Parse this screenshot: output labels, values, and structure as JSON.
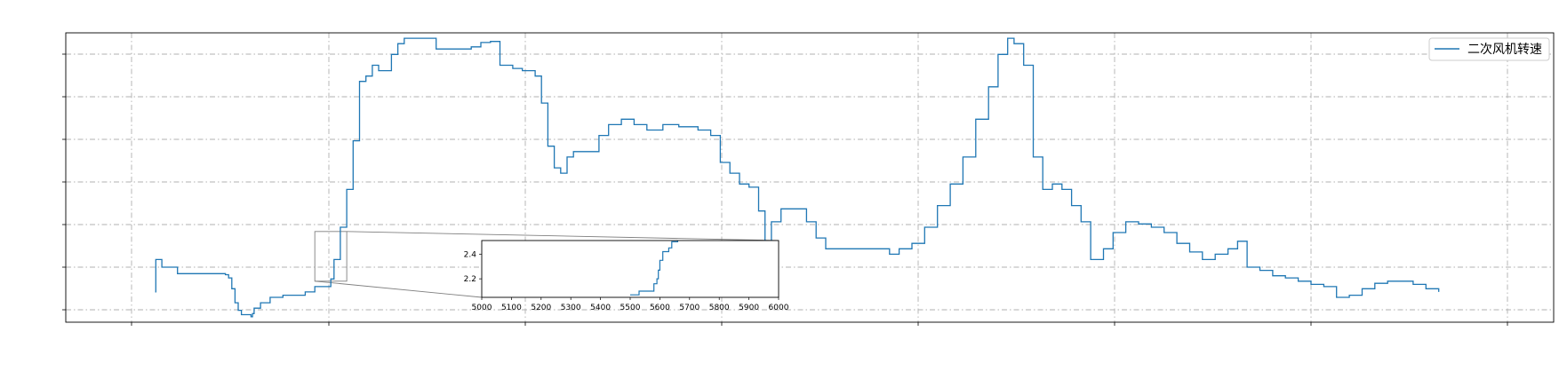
{
  "chart_data": {
    "type": "line",
    "title": "",
    "xlabel": "",
    "ylabel": "",
    "legend": {
      "placement": "top-right"
    },
    "grid": true,
    "color": "#1f77b4",
    "series": [
      {
        "name": "二次风机转速",
        "y_units": "y-axis units (no tick labels shown)",
        "points": [
          [
            0,
            1.95
          ],
          [
            20,
            2.25
          ],
          [
            200,
            2.25
          ],
          [
            210,
            2.18
          ],
          [
            700,
            2.12
          ],
          [
            1200,
            2.12
          ],
          [
            1900,
            2.12
          ],
          [
            2200,
            2.11
          ],
          [
            2300,
            2.08
          ],
          [
            2400,
            1.98
          ],
          [
            2500,
            1.85
          ],
          [
            2600,
            1.78
          ],
          [
            2700,
            1.74
          ],
          [
            3000,
            1.72
          ],
          [
            3050,
            1.75
          ],
          [
            3100,
            1.8
          ],
          [
            3300,
            1.85
          ],
          [
            3600,
            1.9
          ],
          [
            4000,
            1.92
          ],
          [
            4700,
            1.95
          ],
          [
            5000,
            2.0
          ],
          [
            5500,
            2.07
          ],
          [
            5600,
            2.25
          ],
          [
            5800,
            2.55
          ],
          [
            6000,
            2.9
          ],
          [
            6200,
            3.35
          ],
          [
            6400,
            3.9
          ],
          [
            6600,
            3.95
          ],
          [
            6800,
            4.05
          ],
          [
            7000,
            4.0
          ],
          [
            7400,
            4.15
          ],
          [
            7600,
            4.25
          ],
          [
            7800,
            4.3
          ],
          [
            8200,
            4.3
          ],
          [
            8800,
            4.2
          ],
          [
            9500,
            4.2
          ],
          [
            9900,
            4.22
          ],
          [
            10200,
            4.26
          ],
          [
            10500,
            4.27
          ],
          [
            10800,
            4.05
          ],
          [
            11000,
            4.05
          ],
          [
            11200,
            4.02
          ],
          [
            11500,
            4.0
          ],
          [
            11900,
            3.95
          ],
          [
            12100,
            3.7
          ],
          [
            12300,
            3.3
          ],
          [
            12500,
            3.1
          ],
          [
            12700,
            3.05
          ],
          [
            12900,
            3.2
          ],
          [
            13100,
            3.25
          ],
          [
            13400,
            3.25
          ],
          [
            13600,
            3.25
          ],
          [
            13900,
            3.4
          ],
          [
            14200,
            3.5
          ],
          [
            14600,
            3.55
          ],
          [
            15000,
            3.5
          ],
          [
            15400,
            3.45
          ],
          [
            15900,
            3.5
          ],
          [
            16400,
            3.48
          ],
          [
            17000,
            3.45
          ],
          [
            17400,
            3.4
          ],
          [
            17700,
            3.15
          ],
          [
            18000,
            3.05
          ],
          [
            18300,
            2.95
          ],
          [
            18600,
            2.92
          ],
          [
            18900,
            2.7
          ],
          [
            19100,
            2.4
          ],
          [
            19300,
            2.6
          ],
          [
            19600,
            2.72
          ],
          [
            20000,
            2.72
          ],
          [
            20400,
            2.6
          ],
          [
            20700,
            2.45
          ],
          [
            21000,
            2.35
          ],
          [
            21500,
            2.35
          ],
          [
            22000,
            2.35
          ],
          [
            22500,
            2.35
          ],
          [
            23000,
            2.3
          ],
          [
            23300,
            2.35
          ],
          [
            23700,
            2.4
          ],
          [
            24100,
            2.55
          ],
          [
            24500,
            2.75
          ],
          [
            24900,
            2.95
          ],
          [
            25300,
            3.2
          ],
          [
            25700,
            3.55
          ],
          [
            26100,
            3.85
          ],
          [
            26400,
            4.15
          ],
          [
            26700,
            4.3
          ],
          [
            26900,
            4.25
          ],
          [
            27200,
            4.05
          ],
          [
            27500,
            3.2
          ],
          [
            27800,
            2.9
          ],
          [
            28100,
            2.95
          ],
          [
            28400,
            2.9
          ],
          [
            28700,
            2.75
          ],
          [
            29000,
            2.6
          ],
          [
            29300,
            2.25
          ],
          [
            29700,
            2.35
          ],
          [
            30000,
            2.5
          ],
          [
            30400,
            2.6
          ],
          [
            30800,
            2.58
          ],
          [
            31200,
            2.55
          ],
          [
            31600,
            2.5
          ],
          [
            32000,
            2.4
          ],
          [
            32400,
            2.32
          ],
          [
            32800,
            2.25
          ],
          [
            33200,
            2.3
          ],
          [
            33600,
            2.35
          ],
          [
            33900,
            2.42
          ],
          [
            34200,
            2.18
          ],
          [
            34600,
            2.15
          ],
          [
            35000,
            2.1
          ],
          [
            35400,
            2.08
          ],
          [
            35800,
            2.05
          ],
          [
            36200,
            2.02
          ],
          [
            36600,
            2.0
          ],
          [
            37000,
            1.9
          ],
          [
            37400,
            1.92
          ],
          [
            37800,
            1.98
          ],
          [
            38200,
            2.03
          ],
          [
            38600,
            2.05
          ],
          [
            39000,
            2.05
          ],
          [
            39400,
            2.02
          ],
          [
            39800,
            1.98
          ],
          [
            40200,
            1.95
          ]
        ]
      }
    ],
    "inset": {
      "xlim": [
        5000,
        6000
      ],
      "ylim": [
        2.05,
        2.51
      ],
      "x_ticks": [
        "5000",
        "5100",
        "5200",
        "5300",
        "5400",
        "5500",
        "5600",
        "5700",
        "5800",
        "5900",
        "6000"
      ],
      "y_ticks": [
        "2.2",
        "2.4"
      ],
      "y_tick_values": [
        2.2,
        2.4
      ],
      "points": [
        [
          5500,
          2.07
        ],
        [
          5530,
          2.07
        ],
        [
          5530,
          2.1
        ],
        [
          5580,
          2.1
        ],
        [
          5580,
          2.16
        ],
        [
          5590,
          2.16
        ],
        [
          5590,
          2.2
        ],
        [
          5595,
          2.2
        ],
        [
          5595,
          2.27
        ],
        [
          5600,
          2.27
        ],
        [
          5600,
          2.35
        ],
        [
          5610,
          2.35
        ],
        [
          5610,
          2.42
        ],
        [
          5630,
          2.42
        ],
        [
          5630,
          2.45
        ],
        [
          5640,
          2.45
        ],
        [
          5640,
          2.5
        ],
        [
          5660,
          2.5
        ],
        [
          5660,
          2.51
        ]
      ]
    }
  }
}
